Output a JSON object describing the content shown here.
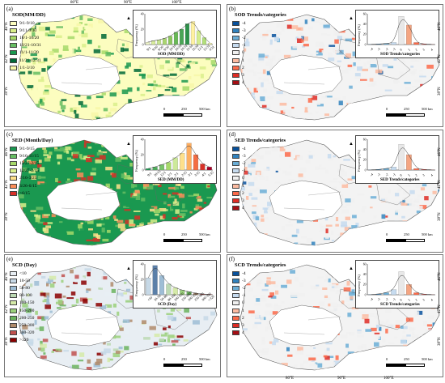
{
  "coords": {
    "top": [
      "80°E",
      "90°E",
      "100°E"
    ],
    "bottom": [
      "80°E",
      "90°E",
      "100°E"
    ],
    "left": [
      "46°N",
      "42°N",
      "38°N"
    ],
    "right": [
      "46°N",
      "42°N",
      "38°N"
    ]
  },
  "scale": {
    "zero": "0",
    "mid": "250",
    "end": "500 km"
  },
  "panels": [
    {
      "id": "a",
      "label": "(a)",
      "title": "SOD(MM/DD)",
      "legend": [
        {
          "label": "9/1-9/10",
          "color": "#fcfdbf"
        },
        {
          "label": "9/11-9/30",
          "color": "#d9ef8b"
        },
        {
          "label": "10/1-10/20",
          "color": "#a6d96a"
        },
        {
          "label": "10/21-10/31",
          "color": "#66bd63"
        },
        {
          "label": "11/1-11/20",
          "color": "#1a9850"
        },
        {
          "label": "11/21-12/31",
          "color": "#006837"
        },
        {
          "label": "1/1-3/10",
          "color": "#f7f7a8"
        }
      ],
      "hist": {
        "xlabel": "SOD (MM/DD)",
        "ylabel": "Frequency (%)",
        "ylim": [
          0,
          40
        ],
        "yticks": [
          "0",
          "20",
          "40"
        ],
        "categories": [
          "9/1",
          "9/10",
          "9/20",
          "9/30",
          "10/10",
          "10/20",
          "10/31",
          "11/10",
          "11/20",
          "12/1",
          "12/31",
          "3/31"
        ],
        "values": [
          3,
          5,
          6,
          8,
          11,
          16,
          20,
          27,
          30,
          18,
          9,
          2
        ],
        "colors": [
          "#eff5c6",
          "#d8ec9b",
          "#c4e38f",
          "#a9d56f",
          "#8cc65e",
          "#68b955",
          "#4aa556",
          "#2d924a",
          "#fff2a1",
          "#d4ee8e",
          "#b2df7a",
          "#f5f5b0"
        ]
      }
    },
    {
      "id": "b",
      "label": "(b)",
      "title": "SOD Trends/categories",
      "legend": [
        {
          "label": "-4",
          "color": "#08519c"
        },
        {
          "label": "-3",
          "color": "#3182bd"
        },
        {
          "label": "-2",
          "color": "#6baed6"
        },
        {
          "label": "-1",
          "color": "#c6dbef"
        },
        {
          "label": "0",
          "color": "#f0f0f0"
        },
        {
          "label": "1",
          "color": "#fcbba1"
        },
        {
          "label": "2",
          "color": "#fb6a4a"
        },
        {
          "label": "3",
          "color": "#de2d26"
        },
        {
          "label": "4",
          "color": "#a50f15"
        }
      ],
      "hist": {
        "xlabel": "SOD Trends/categories",
        "ylabel": "Frequency (%)",
        "ylim": [
          0,
          60
        ],
        "yticks": [
          "0",
          "20",
          "40",
          "60"
        ],
        "categories": [
          "-4",
          "-3",
          "-2",
          "-1",
          "0",
          "1",
          "2",
          "3",
          "4"
        ],
        "values": [
          0.5,
          1,
          2,
          4,
          55,
          38,
          4,
          1,
          0.5
        ],
        "colors": [
          "#08519c",
          "#3182bd",
          "#6baed6",
          "#c6dbef",
          "#e8e8e8",
          "#f4a582",
          "#fb6a4a",
          "#de2d26",
          "#a50f15"
        ]
      }
    },
    {
      "id": "c",
      "label": "(c)",
      "title": "SED (Month/Day)",
      "legend": [
        {
          "label": "9/1-9/15",
          "color": "#1a9850"
        },
        {
          "label": "9/16-11/15",
          "color": "#66bd63"
        },
        {
          "label": "12/27-2/15",
          "color": "#a6d96a"
        },
        {
          "label": "12/27-2/15",
          "color": "#d9ef8b"
        },
        {
          "label": "2/16-3/25",
          "color": "#fee08b"
        },
        {
          "label": "3/26-6/15",
          "color": "#fc8d59"
        },
        {
          "label": ">6/15",
          "color": "#d73027"
        }
      ],
      "hist": {
        "xlabel": "SED (MM/DD)",
        "ylabel": "Frequency (%)",
        "ylim": [
          0,
          40
        ],
        "yticks": [
          "0",
          "20",
          "40"
        ],
        "categories": [
          "9/1",
          "10/15",
          "12/1",
          "1/1",
          "2/1",
          "2/15",
          "3/1",
          "3/15",
          "4/1",
          "5/15"
        ],
        "values": [
          2,
          4,
          7,
          10,
          16,
          22,
          35,
          20,
          8,
          4
        ],
        "colors": [
          "#1a9850",
          "#4eae5b",
          "#79c36a",
          "#a6d96a",
          "#cde99a",
          "#fee08b",
          "#fdae61",
          "#f46d43",
          "#d73027",
          "#a50026"
        ]
      }
    },
    {
      "id": "d",
      "label": "(d)",
      "title": "SED Trends/categories",
      "legend": [
        {
          "label": "-4",
          "color": "#08519c"
        },
        {
          "label": "-3",
          "color": "#3182bd"
        },
        {
          "label": "-2",
          "color": "#6baed6"
        },
        {
          "label": "-1",
          "color": "#c6dbef"
        },
        {
          "label": "0",
          "color": "#f0f0f0"
        },
        {
          "label": "1",
          "color": "#fcbba1"
        },
        {
          "label": "2",
          "color": "#fb6a4a"
        },
        {
          "label": "3",
          "color": "#de2d26"
        },
        {
          "label": "4",
          "color": "#a50f15"
        }
      ],
      "hist": {
        "xlabel": "SED Trends/categories",
        "ylabel": "Frequency (%)",
        "ylim": [
          0,
          60
        ],
        "yticks": [
          "0",
          "20",
          "40",
          "60"
        ],
        "categories": [
          "-4",
          "-3",
          "-2",
          "-1",
          "0",
          "1",
          "2",
          "3",
          "4"
        ],
        "values": [
          0.5,
          1,
          3,
          6,
          50,
          30,
          3,
          1,
          0.5
        ],
        "colors": [
          "#08519c",
          "#3182bd",
          "#6baed6",
          "#c6dbef",
          "#e8e8e8",
          "#f4a582",
          "#fb6a4a",
          "#de2d26",
          "#a50f15"
        ]
      }
    },
    {
      "id": "e",
      "label": "(e)",
      "title": "SCD (Day)",
      "legend": [
        {
          "label": "<10",
          "color": "#e8eef3"
        },
        {
          "label": "10-50",
          "color": "#c6d8e6"
        },
        {
          "label": "50-80",
          "color": "#9ebdd5"
        },
        {
          "label": "80-100",
          "color": "#bcd9b3"
        },
        {
          "label": "100-150",
          "color": "#d5eaa8"
        },
        {
          "label": "150-200",
          "color": "#9bd07b"
        },
        {
          "label": "200-250",
          "color": "#6bb35e"
        },
        {
          "label": "250-300",
          "color": "#b08b6b"
        },
        {
          "label": "300-320",
          "color": "#c0504d"
        },
        {
          "label": ">320",
          "color": "#8b0000"
        }
      ],
      "hist": {
        "xlabel": "SCD (Day)",
        "ylabel": "Frequency (%)",
        "ylim": [
          0,
          40
        ],
        "yticks": [
          "0",
          "20",
          "40"
        ],
        "categories": [
          "<10",
          "10-50",
          "50-80",
          "80-100",
          "100-150",
          "150-200",
          "200-250",
          "250-300",
          "300-320",
          ">320"
        ],
        "values": [
          22,
          38,
          25,
          14,
          9,
          6,
          4,
          2,
          1,
          0.5
        ],
        "colors": [
          "#c6d8e6",
          "#5b7fa8",
          "#9ebdd5",
          "#bcd9b3",
          "#d5eaa8",
          "#9bd07b",
          "#6bb35e",
          "#b08b6b",
          "#c0504d",
          "#8b0000"
        ]
      }
    },
    {
      "id": "f",
      "label": "(f)",
      "title": "SCD Trends/categories",
      "legend": [
        {
          "label": "-4",
          "color": "#08519c"
        },
        {
          "label": "-3",
          "color": "#3182bd"
        },
        {
          "label": "-2",
          "color": "#6baed6"
        },
        {
          "label": "-1",
          "color": "#c6dbef"
        },
        {
          "label": "0",
          "color": "#f0f0f0"
        },
        {
          "label": "1",
          "color": "#fcbba1"
        },
        {
          "label": "2",
          "color": "#fb6a4a"
        },
        {
          "label": "3",
          "color": "#de2d26"
        },
        {
          "label": "4",
          "color": "#a50f15"
        }
      ],
      "hist": {
        "xlabel": "SCD Trends/categories",
        "ylabel": "Frequency (%)",
        "ylim": [
          0,
          60
        ],
        "yticks": [
          "0",
          "20",
          "40",
          "60"
        ],
        "categories": [
          "-4",
          "-3",
          "-2",
          "-1",
          "0",
          "1",
          "2",
          "3",
          "4"
        ],
        "values": [
          0.5,
          1.5,
          4,
          10,
          45,
          20,
          4,
          1,
          0.5
        ],
        "colors": [
          "#08519c",
          "#3182bd",
          "#6baed6",
          "#c6dbef",
          "#e8e8e8",
          "#f4a582",
          "#fb6a4a",
          "#de2d26",
          "#a50f15"
        ]
      }
    }
  ]
}
